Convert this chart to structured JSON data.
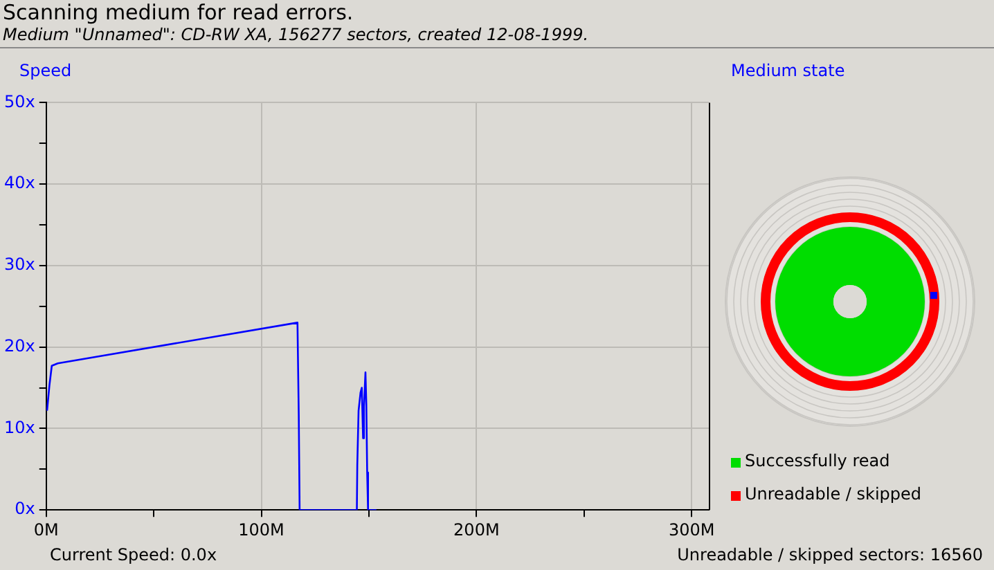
{
  "chart_data": {
    "type": "line",
    "title": "Scanning medium for read errors.",
    "subtitle": "Medium \"Unnamed\": CD-RW XA, 156277 sectors, created 12-08-1999.",
    "ylabel": "Speed",
    "x": [
      0.4,
      1.5,
      2.6,
      5.4,
      116.8,
      117.4,
      117.8,
      144.4,
      144.6,
      145.2,
      146.1,
      146.7,
      147.3,
      147.7,
      148.4,
      148.8,
      149.2,
      149.6,
      153.5
    ],
    "series": [
      {
        "color": "#0000ff",
        "values": [
          12.2,
          15.3,
          17.7,
          18,
          23,
          11.6,
          0,
          0,
          5.5,
          12.2,
          14.4,
          15,
          8.8,
          12.7,
          16.9,
          13,
          4.6,
          0,
          0
        ]
      }
    ],
    "xlim": [
      0,
      308
    ],
    "xticks": [
      {
        "value": 0,
        "label": "0M"
      },
      {
        "value": 50,
        "label": null
      },
      {
        "value": 100,
        "label": "100M"
      },
      {
        "value": 150,
        "label": null
      },
      {
        "value": 200,
        "label": "200M"
      },
      {
        "value": 250,
        "label": null
      },
      {
        "value": 300,
        "label": "300M"
      }
    ],
    "ylim": [
      0,
      50
    ],
    "yticks": [
      {
        "value": 0,
        "label": "0x"
      },
      {
        "value": 5,
        "label": null
      },
      {
        "value": 10,
        "label": "10x"
      },
      {
        "value": 15,
        "label": null
      },
      {
        "value": 20,
        "label": "20x"
      },
      {
        "value": 25,
        "label": null
      },
      {
        "value": 30,
        "label": "30x"
      },
      {
        "value": 35,
        "label": null
      },
      {
        "value": 40,
        "label": "40x"
      },
      {
        "value": 45,
        "label": null
      },
      {
        "value": 50,
        "label": "50x"
      }
    ],
    "grid": true,
    "marker": "none",
    "line_style": "solid",
    "annotations": [
      "Medium state",
      "Successfully read",
      "Unreadable / skipped",
      "Current Speed: 0.0x",
      "Unreadable / skipped sectors: 16560"
    ]
  }
}
